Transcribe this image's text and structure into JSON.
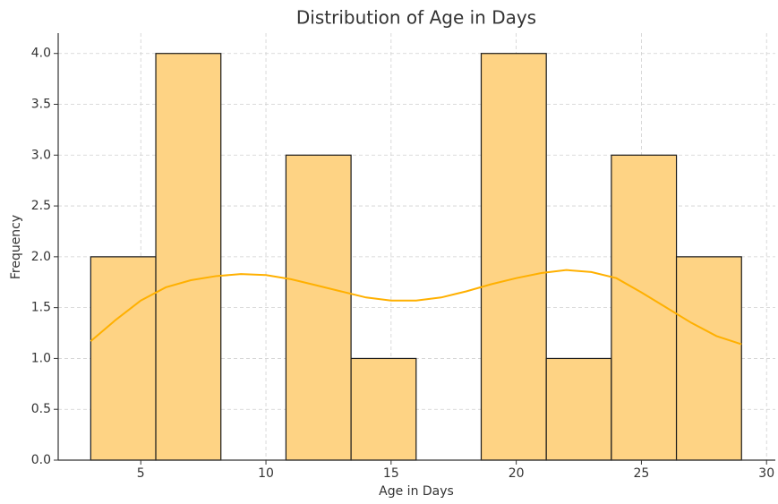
{
  "chart_data": {
    "type": "histogram",
    "title": "Distribution of Age in Days",
    "xlabel": "Age in Days",
    "ylabel": "Frequency",
    "bins": [
      3,
      5.6,
      8.2,
      10.8,
      13.4,
      16,
      18.6,
      21.2,
      23.8,
      26.4,
      29
    ],
    "counts": [
      2,
      4,
      0,
      3,
      1,
      0,
      4,
      1,
      3,
      2
    ],
    "color": "#fed384",
    "edgecolor": "#1a1a1a",
    "kde": {
      "color": "#ffb000",
      "x": [
        3,
        4,
        5,
        6,
        7,
        8,
        9,
        10,
        11,
        12,
        13,
        14,
        15,
        16,
        17,
        18,
        19,
        20,
        21,
        22,
        23,
        24,
        25,
        26,
        27,
        28,
        29
      ],
      "values": [
        1.17,
        1.38,
        1.57,
        1.7,
        1.77,
        1.81,
        1.83,
        1.82,
        1.78,
        1.72,
        1.66,
        1.6,
        1.57,
        1.57,
        1.6,
        1.66,
        1.73,
        1.79,
        1.84,
        1.87,
        1.85,
        1.79,
        1.65,
        1.5,
        1.35,
        1.22,
        1.14
      ]
    },
    "xlim": [
      1.7,
      30.35
    ],
    "ylim": [
      0,
      4.2
    ],
    "xticks": [
      5,
      10,
      15,
      20,
      25,
      30
    ],
    "yticks": [
      {
        "value": 0,
        "label": "0.0"
      },
      0.5,
      {
        "value": 1,
        "label": "1.0"
      },
      1.5,
      {
        "value": 2,
        "label": "2.0"
      },
      2.5,
      {
        "value": 3,
        "label": "3.0"
      },
      3.5,
      {
        "value": 4,
        "label": "4.0"
      }
    ],
    "grid": true
  }
}
